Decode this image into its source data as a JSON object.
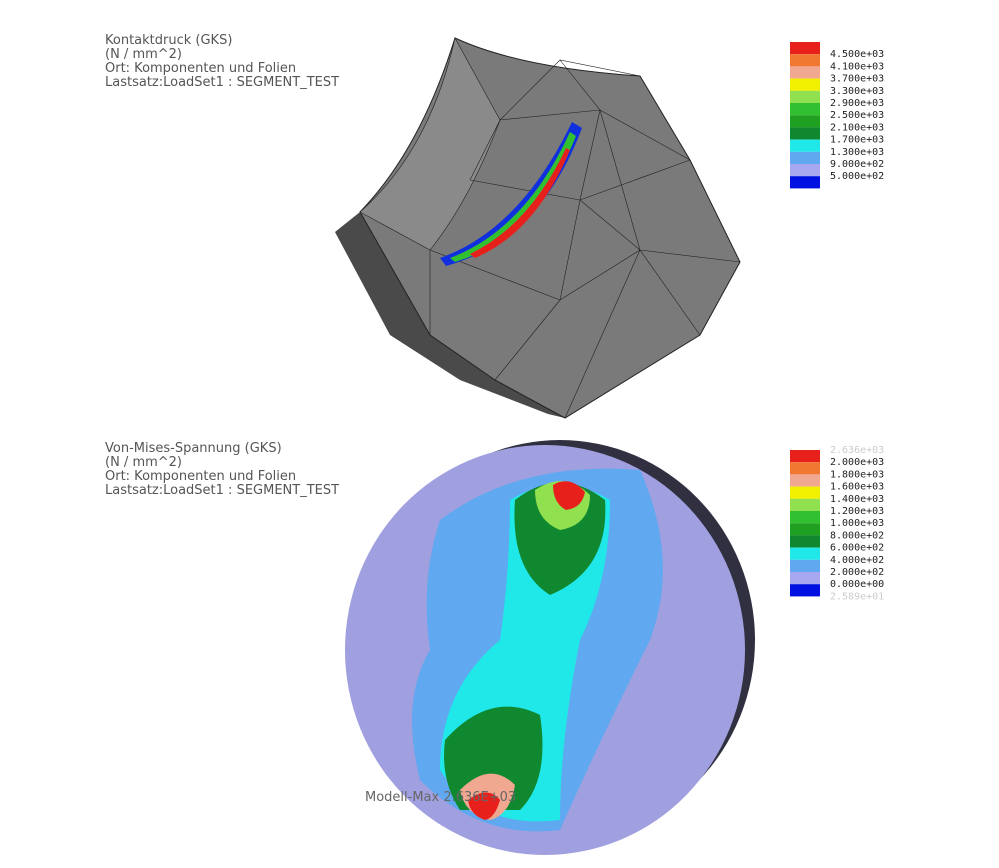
{
  "panels": [
    {
      "header": [
        "Kontaktdruck (GKS)",
        "(N / mm^2)",
        "Ort: Komponenten und Folien",
        "Lastsatz:LoadSet1 :   SEGMENT_TEST"
      ],
      "legend_labels": [
        "4.500e+03",
        "4.100e+03",
        "3.700e+03",
        "3.300e+03",
        "2.900e+03",
        "2.500e+03",
        "2.100e+03",
        "1.700e+03",
        "1.300e+03",
        "9.000e+02",
        "5.000e+02"
      ],
      "legend_colors": [
        "#e8201c",
        "#f07830",
        "#f0a890",
        "#f0f000",
        "#90e050",
        "#30c030",
        "#20a020",
        "#108830",
        "#20e8e8",
        "#60a8f0",
        "#a8a8f0",
        "#0010e0"
      ]
    },
    {
      "header": [
        "Von-Mises-Spannung (GKS)",
        "(N / mm^2)",
        "Ort: Komponenten und Folien",
        "Lastsatz:LoadSet1 :   SEGMENT_TEST"
      ],
      "legend_labels": [
        "2.636e+03",
        "2.000e+03",
        "1.800e+03",
        "1.600e+03",
        "1.400e+03",
        "1.200e+03",
        "1.000e+03",
        "8.000e+02",
        "6.000e+02",
        "4.000e+02",
        "2.000e+02",
        "0.000e+00",
        "2.589e+01"
      ],
      "legend_colors": [
        "#e8201c",
        "#f07830",
        "#f0a890",
        "#f0f000",
        "#90e050",
        "#30c030",
        "#20a020",
        "#108830",
        "#20e8e8",
        "#60a8f0",
        "#a8a8f0",
        "#0010e0"
      ],
      "annotation": "Modell-Max 2.636E+03"
    }
  ]
}
